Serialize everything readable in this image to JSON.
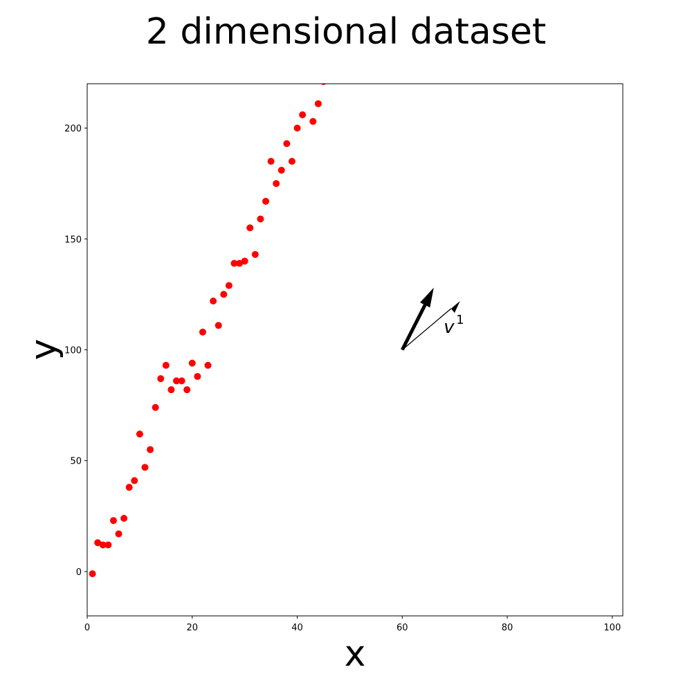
{
  "chart_data": {
    "type": "scatter",
    "title": "2 dimensional dataset",
    "xlabel": "x",
    "ylabel": "y",
    "xlim": [
      0,
      102
    ],
    "ylim": [
      -20,
      220
    ],
    "xticks": [
      0,
      20,
      40,
      60,
      80,
      100
    ],
    "yticks": [
      0,
      50,
      100,
      150,
      200
    ],
    "grid": false,
    "marker_color": "#ff0000",
    "series": [
      {
        "x": [
          1,
          2,
          3,
          4,
          5,
          6,
          7,
          8,
          9,
          10,
          11,
          12,
          13,
          14,
          15,
          16,
          17,
          18,
          19,
          20,
          21,
          22,
          23,
          24,
          25,
          26,
          27,
          28,
          29,
          30,
          31,
          32,
          33,
          34,
          35,
          36,
          37,
          38,
          39,
          40,
          41,
          43,
          44,
          45
        ],
        "y": [
          -1,
          13,
          12,
          12,
          23,
          17,
          24,
          38,
          41,
          62,
          47,
          55,
          74,
          87,
          93,
          82,
          86,
          86,
          82,
          94,
          88,
          108,
          93,
          122,
          111,
          125,
          129,
          139,
          139,
          140,
          155,
          143,
          159,
          167,
          185,
          175,
          181,
          193,
          185,
          200,
          206,
          203,
          211,
          221
        ]
      }
    ],
    "annotations": [
      {
        "type": "arrow",
        "from": [
          60,
          100
        ],
        "to": [
          66,
          128
        ],
        "style": "thick"
      },
      {
        "type": "arrow",
        "from": [
          60,
          100
        ],
        "to": [
          71,
          122
        ],
        "style": "thin",
        "label": "v",
        "superscript": "1",
        "label_at": [
          70,
          112
        ]
      }
    ]
  }
}
